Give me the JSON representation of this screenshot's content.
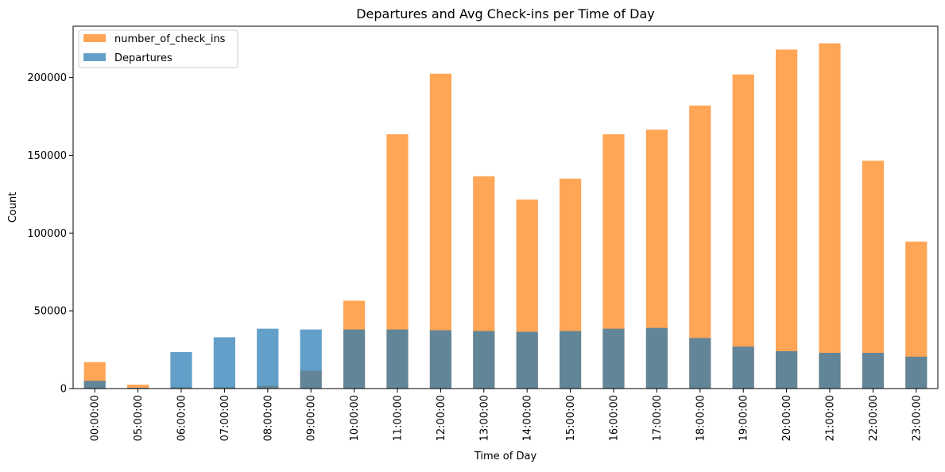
{
  "chart_data": {
    "type": "bar",
    "title": "Departures and Avg Check-ins per Time of Day",
    "xlabel": "Time of Day",
    "ylabel": "Count",
    "categories": [
      "00:00:00",
      "05:00:00",
      "06:00:00",
      "07:00:00",
      "08:00:00",
      "09:00:00",
      "10:00:00",
      "11:00:00",
      "12:00:00",
      "13:00:00",
      "14:00:00",
      "15:00:00",
      "16:00:00",
      "17:00:00",
      "18:00:00",
      "19:00:00",
      "20:00:00",
      "21:00:00",
      "22:00:00",
      "23:00:00"
    ],
    "series": [
      {
        "name": "number_of_check_ins",
        "color": "#ff7f0e",
        "opacity": 0.7,
        "values": [
          17000,
          2500,
          900,
          900,
          1800,
          11500,
          56500,
          163500,
          202500,
          136500,
          121500,
          135000,
          163500,
          166500,
          182000,
          202000,
          218000,
          222000,
          146500,
          94500
        ]
      },
      {
        "name": "Departures",
        "color": "#1f77b4",
        "opacity": 0.7,
        "values": [
          5000,
          500,
          23500,
          33000,
          38500,
          38000,
          38000,
          38000,
          37500,
          37000,
          36500,
          37000,
          38500,
          39000,
          32500,
          27000,
          24000,
          23000,
          23000,
          20500
        ]
      }
    ],
    "yticks": [
      0,
      50000,
      100000,
      150000,
      200000
    ],
    "ylim": [
      0,
      233000
    ],
    "legend": {
      "position": "upper-left",
      "order": [
        "number_of_check_ins",
        "Departures"
      ]
    },
    "grid": false
  }
}
